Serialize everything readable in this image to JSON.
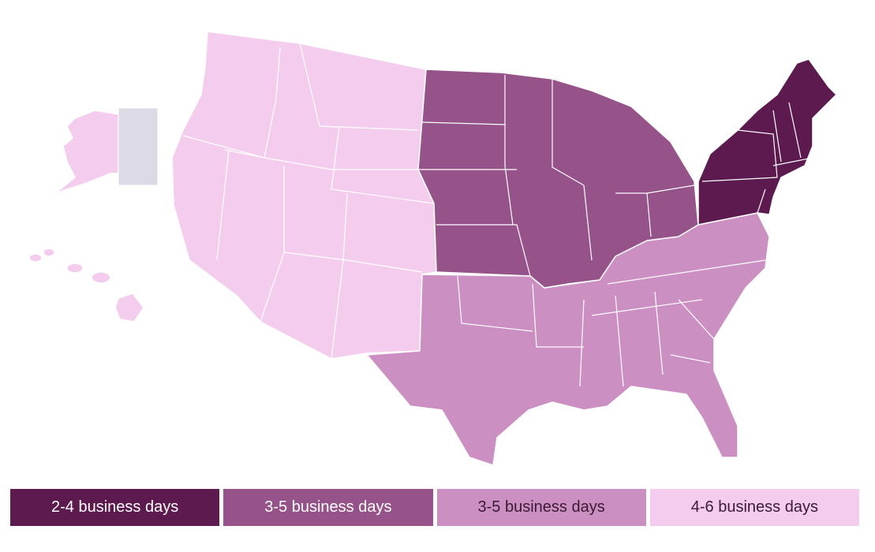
{
  "legend": [
    {
      "label": "2-4 business days",
      "color": "#5c1a4e"
    },
    {
      "label": "3-5 business days",
      "color": "#955389"
    },
    {
      "label": "3-5 business days",
      "color": "#cc8fc1"
    },
    {
      "label": "4-6 business days",
      "color": "#f4cdee"
    }
  ]
}
